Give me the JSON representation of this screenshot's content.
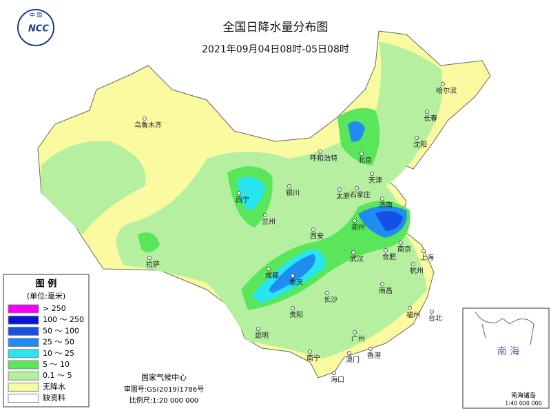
{
  "header": {
    "logo": "NCC",
    "logo_cn": "中 国",
    "title": "全国日降水量分布图",
    "subtitle": "2021年09月04日08时-05日08时"
  },
  "legend": {
    "title": "图 例",
    "unit": "(单位:毫米)",
    "items": [
      {
        "label": "> 250",
        "color": "#f000f0"
      },
      {
        "label": "100 ～ 250",
        "color": "#0a14d8"
      },
      {
        "label": "50 ～ 100",
        "color": "#1450e6"
      },
      {
        "label": "25 ～ 50",
        "color": "#1e8cf0"
      },
      {
        "label": "10 ～ 25",
        "color": "#28e6f0"
      },
      {
        "label": "5 ～ 10",
        "color": "#5ae65a"
      },
      {
        "label": "0.1 ～ 5",
        "color": "#b4f0a0"
      },
      {
        "label": "无降水",
        "color": "#fafaa0"
      },
      {
        "label": "缺资料",
        "color": "#ffffff"
      }
    ]
  },
  "cities": [
    "乌鲁木齐",
    "哈尔滨",
    "长春",
    "沈阳",
    "呼和浩特",
    "北京",
    "天津",
    "石家庄",
    "太原",
    "银川",
    "西宁",
    "兰州",
    "济南",
    "郑州",
    "西安",
    "南京",
    "上海",
    "合肥",
    "武汉",
    "杭州",
    "成都",
    "重庆",
    "拉萨",
    "长沙",
    "南昌",
    "福州",
    "台北",
    "贵阳",
    "昆明",
    "广州",
    "南宁",
    "澳门",
    "香港",
    "海口"
  ],
  "footer": {
    "org": "国家气候中心",
    "map_no": "审图号:GS(2019)1786号",
    "scale": "比例尺:1:20 000 000"
  },
  "inset": {
    "title": "南 海",
    "label": "南海诸岛",
    "scale": "1:40 000 000"
  }
}
